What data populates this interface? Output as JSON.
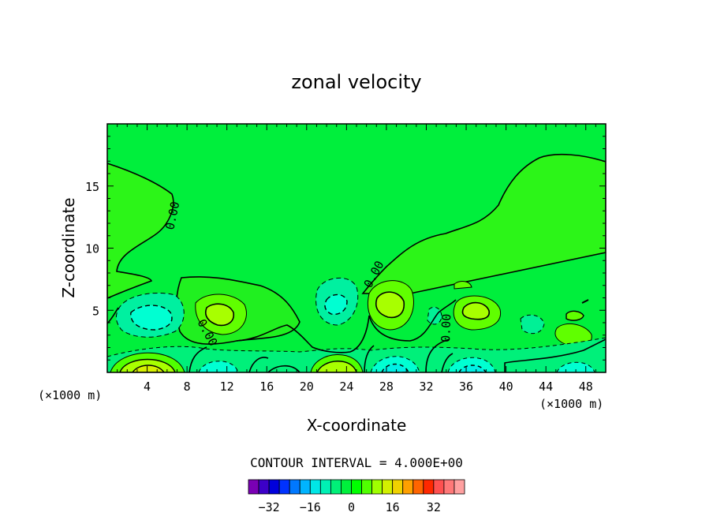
{
  "chart_data": {
    "type": "heatmap",
    "title": "zonal velocity",
    "xlabel": "X-coordinate",
    "ylabel": "Z-coordinate",
    "x_unit": "(×1000 m)",
    "x_unit_right": "(×1000 m)",
    "xlim": [
      0,
      50
    ],
    "ylim": [
      0,
      20
    ],
    "x_ticks": [
      "4",
      "8",
      "12",
      "16",
      "20",
      "24",
      "28",
      "32",
      "36",
      "40",
      "44",
      "48"
    ],
    "y_ticks": [
      "5",
      "10",
      "15"
    ],
    "contour_label": "0.00",
    "contour_interval_text": "CONTOUR INTERVAL = 4.000E+00",
    "colorbar": {
      "ticks": [
        "−32",
        "−16",
        "0",
        "16",
        "32"
      ],
      "colors": [
        "#7a00b4",
        "#3c00c8",
        "#0000dc",
        "#0032ff",
        "#0078ff",
        "#00b4ff",
        "#00e6e6",
        "#00f0b4",
        "#00f078",
        "#00f03c",
        "#00ff00",
        "#50ff00",
        "#a0ff00",
        "#d2f000",
        "#f0d200",
        "#ffa000",
        "#ff6400",
        "#ff2800",
        "#ff5050",
        "#ff7878",
        "#ffa0a0"
      ]
    },
    "features": [
      {
        "x": 5,
        "z": 4.5,
        "value": -8,
        "sign": "negative"
      },
      {
        "x": 23,
        "z": 5.2,
        "value": -8,
        "sign": "negative"
      },
      {
        "x": 11,
        "z": 4.6,
        "value": 8,
        "sign": "positive"
      },
      {
        "x": 29,
        "z": 5.4,
        "value": 10,
        "sign": "positive"
      },
      {
        "x": 37,
        "z": 4.8,
        "value": 8,
        "sign": "positive"
      },
      {
        "x": 5,
        "z": 0.6,
        "value": 12,
        "sign": "positive"
      },
      {
        "x": 23,
        "z": 1.0,
        "value": 8,
        "sign": "positive"
      },
      {
        "x": 30,
        "z": 0.6,
        "value": -8,
        "sign": "negative"
      },
      {
        "x": 37,
        "z": 0.5,
        "value": -8,
        "sign": "negative"
      },
      {
        "x": 11,
        "z": 0.5,
        "value": -8,
        "sign": "negative"
      },
      {
        "x": 47,
        "z": 3.0,
        "value": 6,
        "sign": "positive"
      }
    ]
  }
}
